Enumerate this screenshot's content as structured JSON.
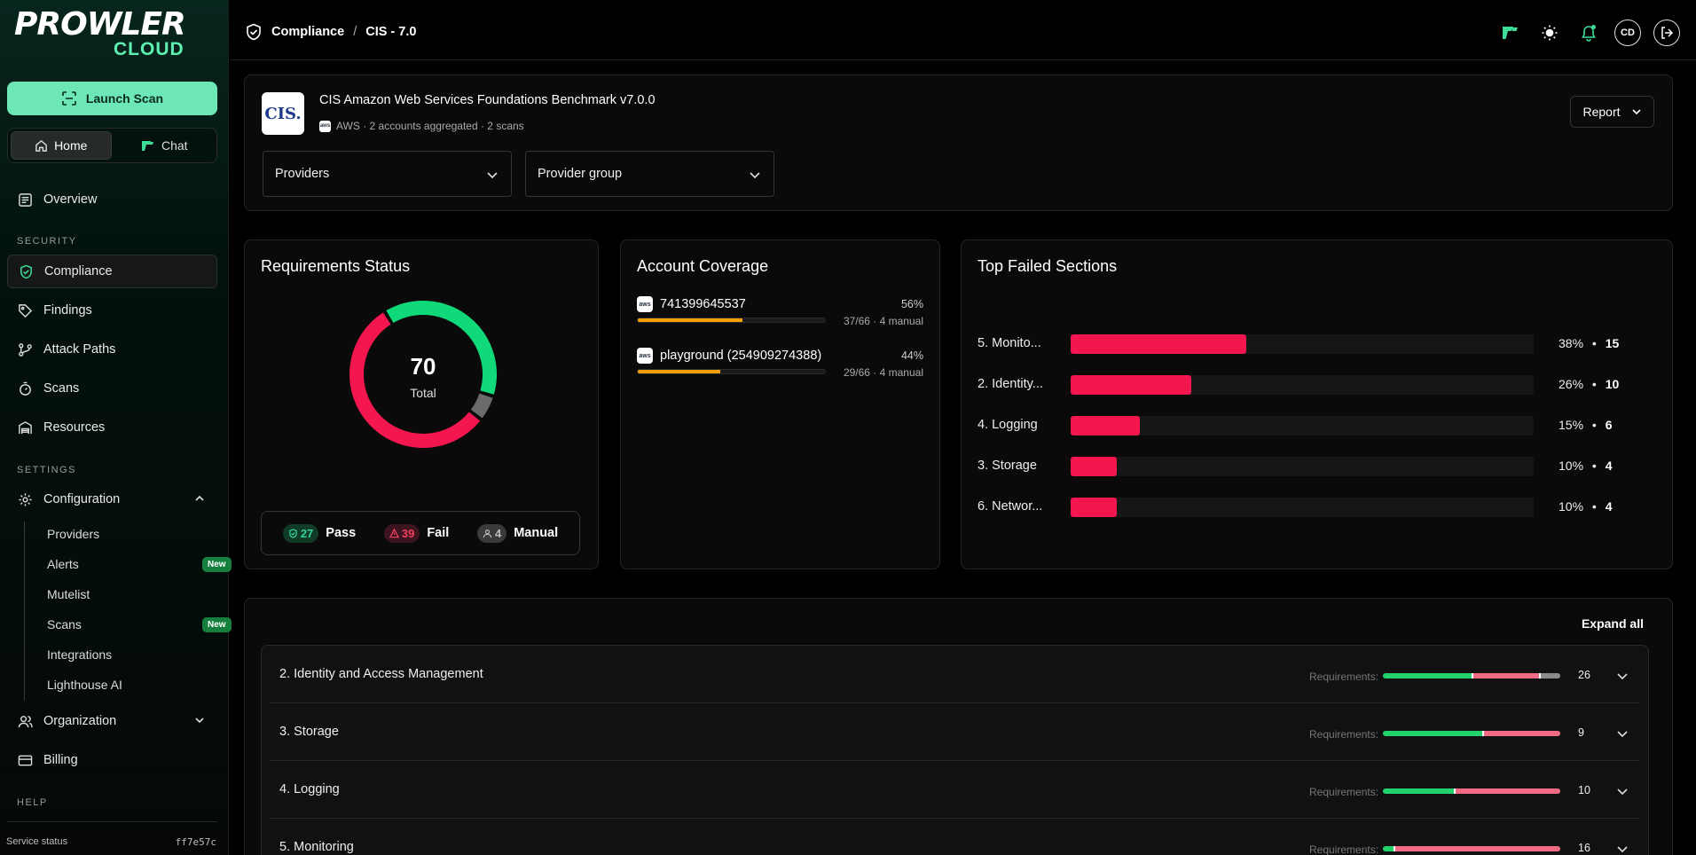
{
  "app": {
    "logo_main": "PROWLER",
    "logo_sub": "CLOUD"
  },
  "sidebar": {
    "launch_scan": "Launch Scan",
    "seg_home": "Home",
    "seg_chat": "Chat",
    "overview": "Overview",
    "security_label": "SECURITY",
    "compliance": "Compliance",
    "findings": "Findings",
    "attack_paths": "Attack Paths",
    "scans": "Scans",
    "resources": "Resources",
    "settings_label": "SETTINGS",
    "configuration": "Configuration",
    "sub_items": [
      {
        "label": "Providers",
        "badge": ""
      },
      {
        "label": "Alerts",
        "badge": "New"
      },
      {
        "label": "Mutelist",
        "badge": ""
      },
      {
        "label": "Scans",
        "badge": "New"
      },
      {
        "label": "Integrations",
        "badge": ""
      },
      {
        "label": "Lighthouse AI",
        "badge": ""
      }
    ],
    "organization": "Organization",
    "billing": "Billing",
    "help_label": "HELP",
    "service_status": "Service status",
    "version": "ff7e57c"
  },
  "header": {
    "breadcrumb_root": "Compliance",
    "breadcrumb_sep": "/",
    "breadcrumb_current": "CIS - 7.0",
    "avatar": "CD"
  },
  "framework": {
    "logo_text": "CIS.",
    "title": "CIS Amazon Web Services Foundations Benchmark v7.0.0",
    "provider_badge": "aws",
    "meta": "AWS · 2 accounts aggregated · 2 scans",
    "report_label": "Report",
    "providers_select": "Providers",
    "provider_group_select": "Provider group"
  },
  "requirements": {
    "title": "Requirements Status",
    "total": "70",
    "total_label": "Total",
    "pass": 27,
    "pass_text": "27",
    "pass_label": "Pass",
    "fail": 39,
    "fail_text": "39",
    "fail_label": "Fail",
    "manual": 4,
    "manual_text": "4",
    "manual_label": "Manual",
    "colors": {
      "pass": "#10d97a",
      "fail": "#f4164f",
      "manual": "#6b6b6b"
    }
  },
  "coverage": {
    "title": "Account Coverage",
    "accounts": [
      {
        "name": "741399645537",
        "pct": "56%",
        "fill": 0.56,
        "detail": "37/66 · 4 manual"
      },
      {
        "name": "playground (254909274388)",
        "pct": "44%",
        "fill": 0.44,
        "detail": "29/66 · 4 manual"
      }
    ]
  },
  "top_failed": {
    "title": "Top Failed Sections",
    "rows": [
      {
        "name": "5. Monito...",
        "pct": "38%",
        "count": "15",
        "fill": 0.38
      },
      {
        "name": "2. Identity...",
        "pct": "26%",
        "count": "10",
        "fill": 0.26
      },
      {
        "name": "4. Logging",
        "pct": "15%",
        "count": "6",
        "fill": 0.15
      },
      {
        "name": "3. Storage",
        "pct": "10%",
        "count": "4",
        "fill": 0.1
      },
      {
        "name": "6. Networ...",
        "pct": "10%",
        "count": "4",
        "fill": 0.1
      }
    ]
  },
  "sections": {
    "expand_all": "Expand all",
    "req_label": "Requirements:",
    "rows": [
      {
        "name": "2. Identity and Access Management",
        "count": "26",
        "pass": 0.5,
        "fail": 0.38,
        "manual": 0.12
      },
      {
        "name": "3. Storage",
        "count": "9",
        "pass": 0.56,
        "fail": 0.44,
        "manual": 0
      },
      {
        "name": "4. Logging",
        "count": "10",
        "pass": 0.4,
        "fail": 0.6,
        "manual": 0
      },
      {
        "name": "5. Monitoring",
        "count": "16",
        "pass": 0.06,
        "fail": 0.94,
        "manual": 0
      }
    ]
  }
}
